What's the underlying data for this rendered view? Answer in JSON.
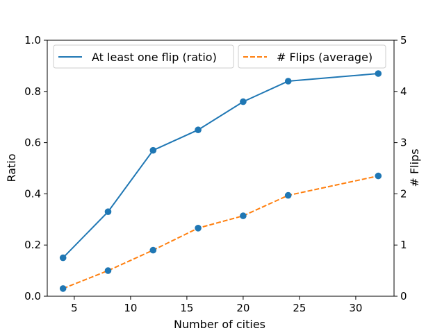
{
  "chart_data": {
    "type": "line",
    "x": [
      4,
      8,
      12,
      16,
      20,
      24,
      32
    ],
    "xlabel": "Number of cities",
    "xlim": [
      2.6,
      33.4
    ],
    "xticks": [
      5,
      10,
      15,
      20,
      25,
      30
    ],
    "left_axis": {
      "label": "Ratio",
      "ylim": [
        0,
        1.0
      ],
      "ticks": [
        "0.0",
        "0.2",
        "0.4",
        "0.6",
        "0.8",
        "1.0"
      ]
    },
    "right_axis": {
      "label": "# Flips",
      "ylim": [
        0,
        5
      ],
      "ticks": [
        "0",
        "1",
        "2",
        "3",
        "4",
        "5"
      ]
    },
    "series": [
      {
        "name": "At least one flip (ratio)",
        "axis": "left",
        "values": [
          0.15,
          0.33,
          0.57,
          0.65,
          0.76,
          0.84,
          0.87
        ],
        "color": "#1f77b4",
        "line": "solid"
      },
      {
        "name": "# Flips (average)",
        "axis": "right",
        "values": [
          0.15,
          0.5,
          0.9,
          1.33,
          1.57,
          1.97,
          2.35
        ],
        "color": "#ff7f0e",
        "line": "dashed",
        "marker_color": "#1f77b4"
      }
    ],
    "grid": false,
    "legend": "top, two boxes"
  }
}
